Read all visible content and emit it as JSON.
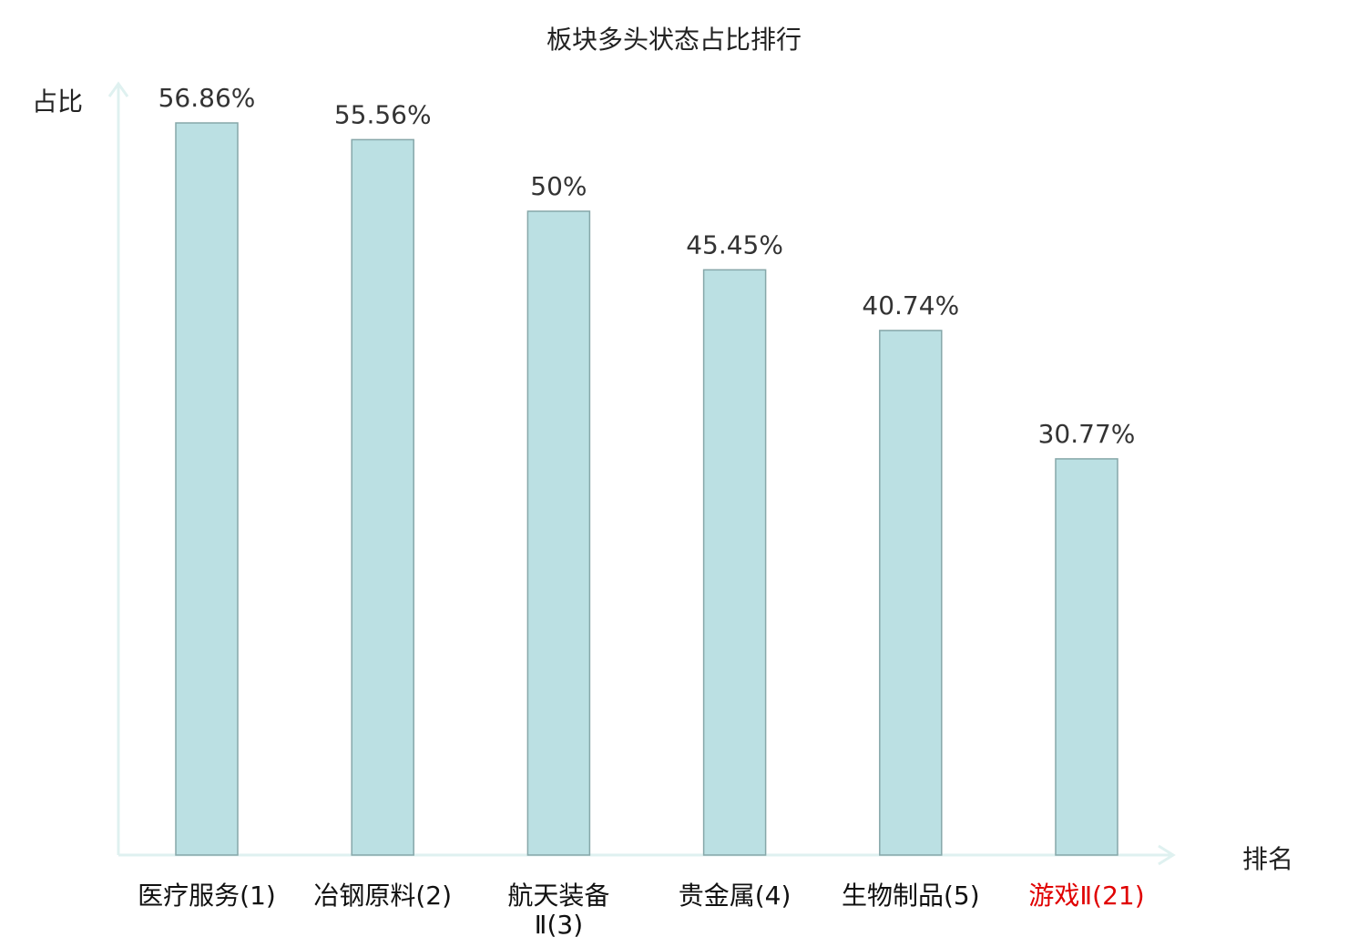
{
  "chart_data": {
    "type": "bar",
    "title": "板块多头状态占比排行",
    "ylabel": "占比",
    "xlabel": "排名",
    "categories": [
      {
        "lines": [
          "医疗服务(1)"
        ],
        "highlight": false
      },
      {
        "lines": [
          "冶钢原料(2)"
        ],
        "highlight": false
      },
      {
        "lines": [
          "航天装备",
          "Ⅱ(3)"
        ],
        "highlight": false
      },
      {
        "lines": [
          "贵金属(4)"
        ],
        "highlight": false
      },
      {
        "lines": [
          "生物制品(5)"
        ],
        "highlight": false
      },
      {
        "lines": [
          "游戏Ⅱ(21)"
        ],
        "highlight": true
      }
    ],
    "values": [
      56.86,
      55.56,
      50,
      45.45,
      40.74,
      30.77
    ],
    "value_labels": [
      "56.86%",
      "55.56%",
      "50%",
      "45.45%",
      "40.74%",
      "30.77%"
    ],
    "ylim": [
      0,
      60
    ],
    "grid": false,
    "colors": {
      "bar_fill": "#bbe0e3",
      "bar_stroke": "#86a7a9",
      "axis": "#dff1f0",
      "highlight": "#e00000",
      "text": "#333333"
    }
  }
}
